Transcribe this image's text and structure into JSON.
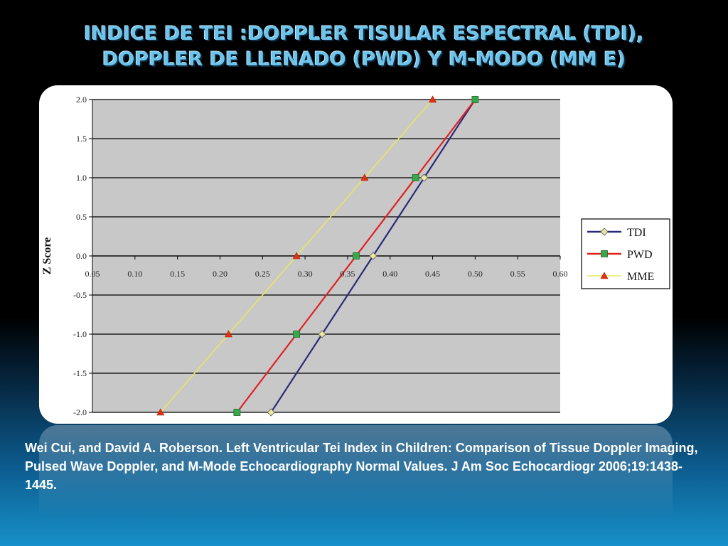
{
  "slide": {
    "title_line1": "INDICE DE TEI :DOPPLER TISULAR ESPECTRAL (TDI),",
    "title_line2": "DOPPLER DE LLENADO (PWD) Y M-MODO (MM E)",
    "citation": "Wei Cui, and David A. Roberson. Left Ventricular Tei Index in Children: Comparison of Tissue Doppler Imaging, Pulsed Wave Doppler, and M-Mode Echocardiography Normal Values.  J Am Soc Echocardiogr 2006;19:1438-1445."
  },
  "chart_data": {
    "type": "line",
    "title": "",
    "xlabel": "",
    "ylabel": "Z Score",
    "xlim": [
      0.05,
      0.6
    ],
    "ylim": [
      -2.0,
      2.0
    ],
    "x_ticks": [
      0.05,
      0.1,
      0.15,
      0.2,
      0.25,
      0.3,
      0.35,
      0.4,
      0.45,
      0.5,
      0.55,
      0.6
    ],
    "x_tick_labels": [
      "0.05",
      "0.10",
      "0.15",
      "0.20",
      "0.25",
      "0.30",
      "0.35",
      "0.40",
      "0.45",
      "0.50",
      "0.55",
      "0.60"
    ],
    "y_ticks": [
      2.0,
      1.5,
      1.0,
      0.5,
      0.0,
      -0.5,
      -1.0,
      -1.5,
      -2.0
    ],
    "y_tick_labels": [
      "2.0",
      "1.5",
      "1.0",
      "0.5",
      "0.0",
      "-0.5",
      "-1.0",
      "-1.5",
      "-2.0"
    ],
    "grid": "horizontal",
    "legend_position": "right",
    "plot_background": "#c8c8c8",
    "series": [
      {
        "name": "TDI",
        "color": "#2a2a7a",
        "marker": "diamond",
        "marker_fill": "#e8e8a0",
        "points": [
          [
            0.26,
            -2.0
          ],
          [
            0.32,
            -1.0
          ],
          [
            0.38,
            0.0
          ],
          [
            0.44,
            1.0
          ],
          [
            0.5,
            2.0
          ]
        ]
      },
      {
        "name": "PWD",
        "color": "#e02020",
        "marker": "square",
        "marker_fill": "#3aa84a",
        "points": [
          [
            0.22,
            -2.0
          ],
          [
            0.29,
            -1.0
          ],
          [
            0.36,
            0.0
          ],
          [
            0.43,
            1.0
          ],
          [
            0.5,
            2.0
          ]
        ]
      },
      {
        "name": "MME",
        "color": "#e8e860",
        "marker": "triangle",
        "marker_fill": "#e83010",
        "points": [
          [
            0.13,
            -2.0
          ],
          [
            0.21,
            -1.0
          ],
          [
            0.29,
            0.0
          ],
          [
            0.37,
            1.0
          ],
          [
            0.45,
            2.0
          ]
        ]
      }
    ]
  }
}
